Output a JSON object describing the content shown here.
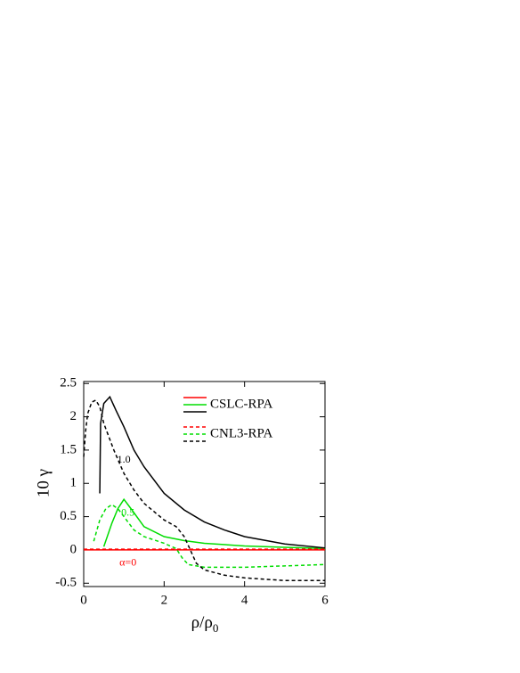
{
  "chart_data": {
    "type": "line",
    "xlabel": {
      "text": "ρ/ρ",
      "sub": "0"
    },
    "ylabel": "10 γ",
    "xlim": [
      0,
      6
    ],
    "xticks": [
      0,
      2,
      4,
      6
    ],
    "ylim": [
      -0.55,
      2.53
    ],
    "yticks": [
      2.5,
      2,
      1.5,
      1,
      0.5,
      0,
      -0.5
    ],
    "legend_groups": [
      "CSLC-RPA",
      "CNL3-RPA"
    ],
    "annotations": [
      "1.0",
      "0.5",
      "α=0"
    ],
    "series": [
      {
        "name": "CSLC-RPA",
        "color": "#ff0000",
        "dash": false,
        "x": [
          0,
          6
        ],
        "values": [
          0,
          0
        ]
      },
      {
        "name": "CSLC-RPA",
        "color": "#00dd00",
        "dash": false,
        "x": [
          0.5,
          0.7,
          0.85,
          1.0,
          1.2,
          1.5,
          2,
          2.5,
          3,
          4,
          5,
          6
        ],
        "values": [
          0.05,
          0.4,
          0.62,
          0.76,
          0.6,
          0.35,
          0.2,
          0.14,
          0.1,
          0.06,
          0.04,
          0.02
        ]
      },
      {
        "name": "CSLC-RPA",
        "color": "#000000",
        "dash": false,
        "x": [
          0.4,
          0.42,
          0.5,
          0.65,
          0.8,
          1,
          1.25,
          1.5,
          2,
          2.5,
          3,
          3.5,
          4,
          5,
          6
        ],
        "values": [
          0.85,
          1.9,
          2.2,
          2.3,
          2.1,
          1.85,
          1.5,
          1.25,
          0.85,
          0.6,
          0.42,
          0.3,
          0.2,
          0.09,
          0.03
        ]
      },
      {
        "name": "CNL3-RPA",
        "color": "#ff0000",
        "dash": true,
        "x": [
          0,
          6
        ],
        "values": [
          0.01,
          0.01
        ]
      },
      {
        "name": "CNL3-RPA",
        "color": "#00dd00",
        "dash": true,
        "x": [
          0.25,
          0.4,
          0.55,
          0.7,
          0.85,
          1,
          1.25,
          1.5,
          2,
          2.3,
          2.45,
          2.6,
          3,
          4,
          5,
          6
        ],
        "values": [
          0.13,
          0.45,
          0.62,
          0.68,
          0.62,
          0.5,
          0.3,
          0.2,
          0.1,
          0.02,
          -0.12,
          -0.22,
          -0.26,
          -0.26,
          -0.24,
          -0.22
        ]
      },
      {
        "name": "CNL3-RPA",
        "color": "#000000",
        "dash": true,
        "x": [
          0,
          0.05,
          0.1,
          0.2,
          0.3,
          0.4,
          0.5,
          0.75,
          1,
          1.25,
          1.5,
          2,
          2.3,
          2.5,
          2.65,
          2.8,
          3,
          3.5,
          4,
          5,
          6
        ],
        "values": [
          1.4,
          1.8,
          2.05,
          2.22,
          2.25,
          2.15,
          1.9,
          1.5,
          1.15,
          0.9,
          0.7,
          0.45,
          0.35,
          0.2,
          0.0,
          -0.2,
          -0.3,
          -0.38,
          -0.42,
          -0.46,
          -0.46
        ]
      }
    ]
  }
}
